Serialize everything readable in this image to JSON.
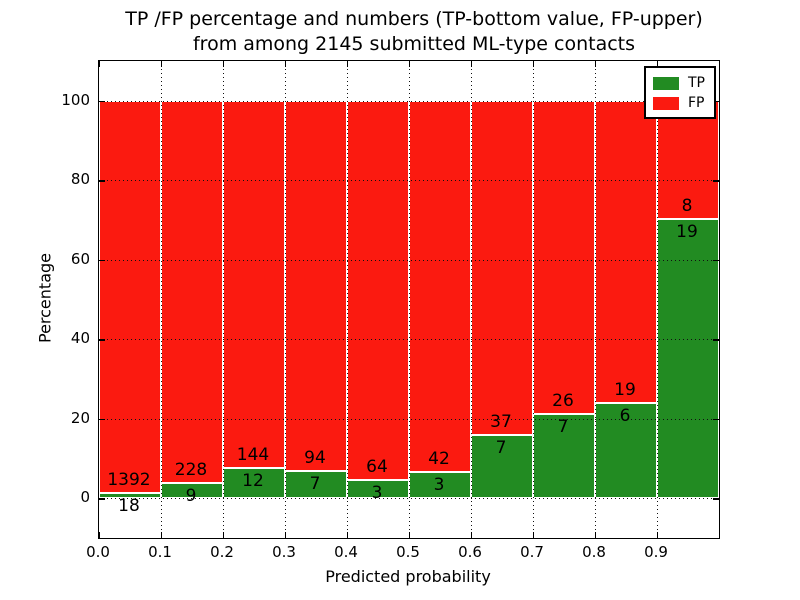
{
  "figure": {
    "title_line1": "TP /FP percentage and numbers (TP-bottom value, FP-upper)",
    "title_line2": "from among 2145 submitted ML-type contacts",
    "xlabel": "Predicted probability",
    "ylabel": "Percentage"
  },
  "legend": {
    "position": "upper right",
    "entries": [
      {
        "label": "TP",
        "color": "#228b22"
      },
      {
        "label": "FP",
        "color": "#fb1a10"
      }
    ]
  },
  "chart_data": {
    "type": "bar",
    "stacked": true,
    "normalized_to_percent": true,
    "title": "TP /FP percentage and numbers (TP-bottom value, FP-upper) from among 2145 submitted ML-type contacts",
    "xlabel": "Predicted probability",
    "ylabel": "Percentage",
    "total_contacts": 2145,
    "xlim": [
      0.0,
      1.0
    ],
    "ylim": [
      -10,
      110
    ],
    "bar_width": 0.1,
    "grid": "dotted",
    "legend_position": "upper right",
    "yticks": [
      0,
      20,
      40,
      60,
      80,
      100
    ],
    "xticks": [
      0.0,
      0.1,
      0.2,
      0.3,
      0.4,
      0.5,
      0.6,
      0.7,
      0.8,
      0.9
    ],
    "xtick_labels": [
      "0.0",
      "0.1",
      "0.2",
      "0.3",
      "0.4",
      "0.5",
      "0.6",
      "0.7",
      "0.8",
      "0.9"
    ],
    "categories": [
      "0.0-0.1",
      "0.1-0.2",
      "0.2-0.3",
      "0.3-0.4",
      "0.4-0.5",
      "0.5-0.6",
      "0.6-0.7",
      "0.7-0.8",
      "0.8-0.9",
      "0.9-1.0"
    ],
    "series": [
      {
        "name": "TP",
        "color": "#228b22",
        "counts": [
          18,
          9,
          12,
          7,
          3,
          3,
          7,
          7,
          6,
          19
        ]
      },
      {
        "name": "FP",
        "color": "#fb1a10",
        "counts": [
          1392,
          228,
          144,
          94,
          64,
          42,
          37,
          26,
          19,
          8
        ]
      }
    ]
  }
}
